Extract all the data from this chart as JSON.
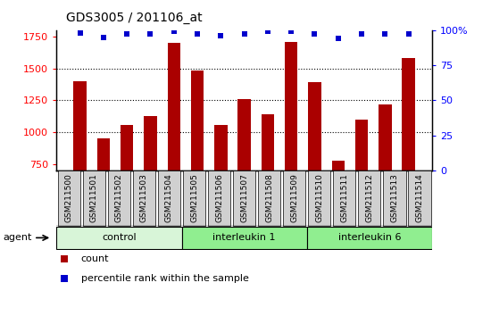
{
  "title": "GDS3005 / 201106_at",
  "samples": [
    "GSM211500",
    "GSM211501",
    "GSM211502",
    "GSM211503",
    "GSM211504",
    "GSM211505",
    "GSM211506",
    "GSM211507",
    "GSM211508",
    "GSM211509",
    "GSM211510",
    "GSM211511",
    "GSM211512",
    "GSM211513",
    "GSM211514"
  ],
  "counts": [
    1400,
    950,
    1055,
    1130,
    1700,
    1480,
    1055,
    1260,
    1140,
    1710,
    1390,
    780,
    1100,
    1215,
    1580
  ],
  "percentile_ranks": [
    98,
    95,
    97,
    97,
    99,
    97,
    96,
    97,
    99,
    99,
    97,
    94,
    97,
    97,
    97
  ],
  "groups": [
    {
      "label": "control",
      "start": 0,
      "end": 5,
      "color": "#d8f5d8"
    },
    {
      "label": "interleukin 1",
      "start": 5,
      "end": 10,
      "color": "#90ee90"
    },
    {
      "label": "interleukin 6",
      "start": 10,
      "end": 15,
      "color": "#90ee90"
    }
  ],
  "ylim_left": [
    700,
    1800
  ],
  "ylim_right": [
    0,
    100
  ],
  "yticks_left": [
    750,
    1000,
    1250,
    1500,
    1750
  ],
  "yticks_right": [
    0,
    25,
    50,
    75,
    100
  ],
  "bar_color": "#aa0000",
  "dot_color": "#0000cc",
  "bar_width": 0.55,
  "grid_yticks": [
    1000,
    1250,
    1500
  ],
  "grid_color": "black",
  "legend_count_label": "count",
  "legend_percentile_label": "percentile rank within the sample",
  "tick_label_color_left": "red",
  "tick_label_color_right": "blue",
  "xlabel_agent": "agent"
}
